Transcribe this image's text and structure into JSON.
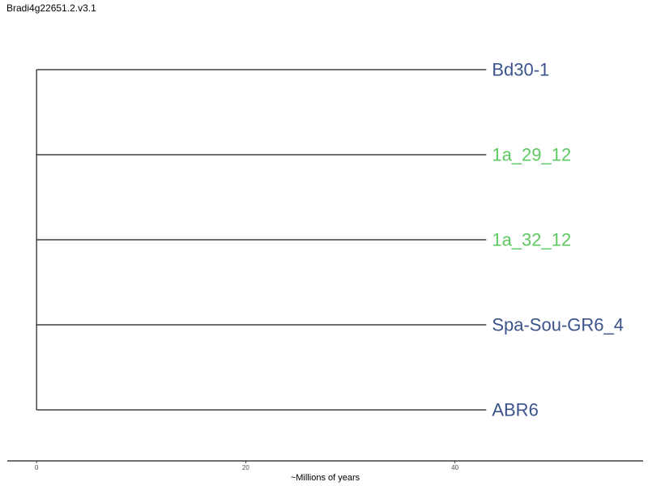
{
  "chart_data": {
    "type": "dendrogram",
    "title": "Bradi4g22651.2.v3.1",
    "xlabel": "~Millions of years",
    "x_ticks": [
      0,
      20,
      40
    ],
    "xlim": [
      -2.8,
      58
    ],
    "root_x": 0,
    "leaves": [
      {
        "label": "Bd30-1",
        "x": 43,
        "color": "#3b528b"
      },
      {
        "label": "1a_29_12",
        "x": 43,
        "color": "#5ec962"
      },
      {
        "label": "1a_32_12",
        "x": 43,
        "color": "#5ec962"
      },
      {
        "label": "Spa-Sou-GR6_4",
        "x": 43,
        "color": "#3b528b"
      },
      {
        "label": "ABR6",
        "x": 43,
        "color": "#3b528b"
      }
    ]
  }
}
